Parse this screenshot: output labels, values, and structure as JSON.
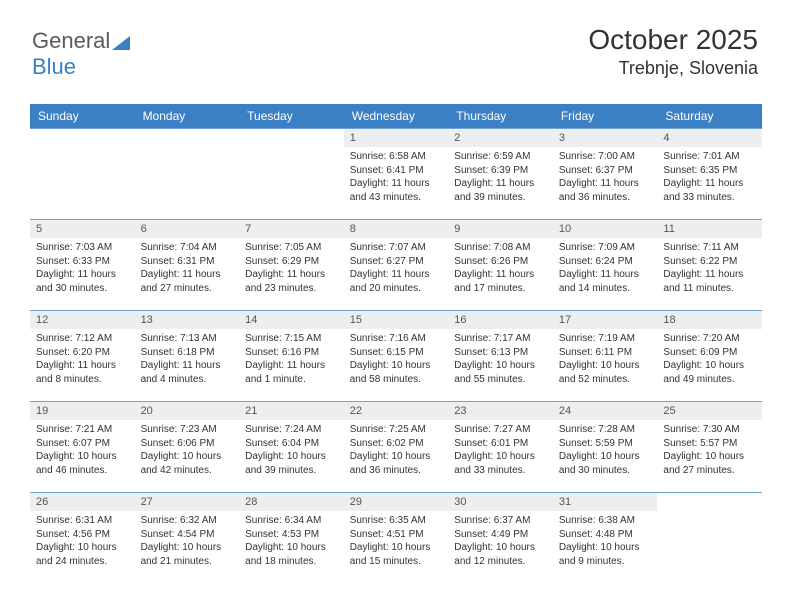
{
  "logo": {
    "part1": "General",
    "part2": "Blue"
  },
  "title": "October 2025",
  "location": "Trebnje, Slovenia",
  "colors": {
    "header_bg": "#3b7fc4",
    "header_text": "#ffffff",
    "daynum_bg": "#eceeef",
    "border": "#6fa3d4",
    "text": "#333333",
    "logo_gray": "#5a5a5a",
    "logo_blue": "#3b7fc4"
  },
  "day_labels": [
    "Sunday",
    "Monday",
    "Tuesday",
    "Wednesday",
    "Thursday",
    "Friday",
    "Saturday"
  ],
  "weeks": [
    [
      {
        "n": "",
        "sr": "",
        "ss": "",
        "dl1": "",
        "dl2": ""
      },
      {
        "n": "",
        "sr": "",
        "ss": "",
        "dl1": "",
        "dl2": ""
      },
      {
        "n": "",
        "sr": "",
        "ss": "",
        "dl1": "",
        "dl2": ""
      },
      {
        "n": "1",
        "sr": "Sunrise: 6:58 AM",
        "ss": "Sunset: 6:41 PM",
        "dl1": "Daylight: 11 hours",
        "dl2": "and 43 minutes."
      },
      {
        "n": "2",
        "sr": "Sunrise: 6:59 AM",
        "ss": "Sunset: 6:39 PM",
        "dl1": "Daylight: 11 hours",
        "dl2": "and 39 minutes."
      },
      {
        "n": "3",
        "sr": "Sunrise: 7:00 AM",
        "ss": "Sunset: 6:37 PM",
        "dl1": "Daylight: 11 hours",
        "dl2": "and 36 minutes."
      },
      {
        "n": "4",
        "sr": "Sunrise: 7:01 AM",
        "ss": "Sunset: 6:35 PM",
        "dl1": "Daylight: 11 hours",
        "dl2": "and 33 minutes."
      }
    ],
    [
      {
        "n": "5",
        "sr": "Sunrise: 7:03 AM",
        "ss": "Sunset: 6:33 PM",
        "dl1": "Daylight: 11 hours",
        "dl2": "and 30 minutes."
      },
      {
        "n": "6",
        "sr": "Sunrise: 7:04 AM",
        "ss": "Sunset: 6:31 PM",
        "dl1": "Daylight: 11 hours",
        "dl2": "and 27 minutes."
      },
      {
        "n": "7",
        "sr": "Sunrise: 7:05 AM",
        "ss": "Sunset: 6:29 PM",
        "dl1": "Daylight: 11 hours",
        "dl2": "and 23 minutes."
      },
      {
        "n": "8",
        "sr": "Sunrise: 7:07 AM",
        "ss": "Sunset: 6:27 PM",
        "dl1": "Daylight: 11 hours",
        "dl2": "and 20 minutes."
      },
      {
        "n": "9",
        "sr": "Sunrise: 7:08 AM",
        "ss": "Sunset: 6:26 PM",
        "dl1": "Daylight: 11 hours",
        "dl2": "and 17 minutes."
      },
      {
        "n": "10",
        "sr": "Sunrise: 7:09 AM",
        "ss": "Sunset: 6:24 PM",
        "dl1": "Daylight: 11 hours",
        "dl2": "and 14 minutes."
      },
      {
        "n": "11",
        "sr": "Sunrise: 7:11 AM",
        "ss": "Sunset: 6:22 PM",
        "dl1": "Daylight: 11 hours",
        "dl2": "and 11 minutes."
      }
    ],
    [
      {
        "n": "12",
        "sr": "Sunrise: 7:12 AM",
        "ss": "Sunset: 6:20 PM",
        "dl1": "Daylight: 11 hours",
        "dl2": "and 8 minutes."
      },
      {
        "n": "13",
        "sr": "Sunrise: 7:13 AM",
        "ss": "Sunset: 6:18 PM",
        "dl1": "Daylight: 11 hours",
        "dl2": "and 4 minutes."
      },
      {
        "n": "14",
        "sr": "Sunrise: 7:15 AM",
        "ss": "Sunset: 6:16 PM",
        "dl1": "Daylight: 11 hours",
        "dl2": "and 1 minute."
      },
      {
        "n": "15",
        "sr": "Sunrise: 7:16 AM",
        "ss": "Sunset: 6:15 PM",
        "dl1": "Daylight: 10 hours",
        "dl2": "and 58 minutes."
      },
      {
        "n": "16",
        "sr": "Sunrise: 7:17 AM",
        "ss": "Sunset: 6:13 PM",
        "dl1": "Daylight: 10 hours",
        "dl2": "and 55 minutes."
      },
      {
        "n": "17",
        "sr": "Sunrise: 7:19 AM",
        "ss": "Sunset: 6:11 PM",
        "dl1": "Daylight: 10 hours",
        "dl2": "and 52 minutes."
      },
      {
        "n": "18",
        "sr": "Sunrise: 7:20 AM",
        "ss": "Sunset: 6:09 PM",
        "dl1": "Daylight: 10 hours",
        "dl2": "and 49 minutes."
      }
    ],
    [
      {
        "n": "19",
        "sr": "Sunrise: 7:21 AM",
        "ss": "Sunset: 6:07 PM",
        "dl1": "Daylight: 10 hours",
        "dl2": "and 46 minutes."
      },
      {
        "n": "20",
        "sr": "Sunrise: 7:23 AM",
        "ss": "Sunset: 6:06 PM",
        "dl1": "Daylight: 10 hours",
        "dl2": "and 42 minutes."
      },
      {
        "n": "21",
        "sr": "Sunrise: 7:24 AM",
        "ss": "Sunset: 6:04 PM",
        "dl1": "Daylight: 10 hours",
        "dl2": "and 39 minutes."
      },
      {
        "n": "22",
        "sr": "Sunrise: 7:25 AM",
        "ss": "Sunset: 6:02 PM",
        "dl1": "Daylight: 10 hours",
        "dl2": "and 36 minutes."
      },
      {
        "n": "23",
        "sr": "Sunrise: 7:27 AM",
        "ss": "Sunset: 6:01 PM",
        "dl1": "Daylight: 10 hours",
        "dl2": "and 33 minutes."
      },
      {
        "n": "24",
        "sr": "Sunrise: 7:28 AM",
        "ss": "Sunset: 5:59 PM",
        "dl1": "Daylight: 10 hours",
        "dl2": "and 30 minutes."
      },
      {
        "n": "25",
        "sr": "Sunrise: 7:30 AM",
        "ss": "Sunset: 5:57 PM",
        "dl1": "Daylight: 10 hours",
        "dl2": "and 27 minutes."
      }
    ],
    [
      {
        "n": "26",
        "sr": "Sunrise: 6:31 AM",
        "ss": "Sunset: 4:56 PM",
        "dl1": "Daylight: 10 hours",
        "dl2": "and 24 minutes."
      },
      {
        "n": "27",
        "sr": "Sunrise: 6:32 AM",
        "ss": "Sunset: 4:54 PM",
        "dl1": "Daylight: 10 hours",
        "dl2": "and 21 minutes."
      },
      {
        "n": "28",
        "sr": "Sunrise: 6:34 AM",
        "ss": "Sunset: 4:53 PM",
        "dl1": "Daylight: 10 hours",
        "dl2": "and 18 minutes."
      },
      {
        "n": "29",
        "sr": "Sunrise: 6:35 AM",
        "ss": "Sunset: 4:51 PM",
        "dl1": "Daylight: 10 hours",
        "dl2": "and 15 minutes."
      },
      {
        "n": "30",
        "sr": "Sunrise: 6:37 AM",
        "ss": "Sunset: 4:49 PM",
        "dl1": "Daylight: 10 hours",
        "dl2": "and 12 minutes."
      },
      {
        "n": "31",
        "sr": "Sunrise: 6:38 AM",
        "ss": "Sunset: 4:48 PM",
        "dl1": "Daylight: 10 hours",
        "dl2": "and 9 minutes."
      },
      {
        "n": "",
        "sr": "",
        "ss": "",
        "dl1": "",
        "dl2": ""
      }
    ]
  ]
}
